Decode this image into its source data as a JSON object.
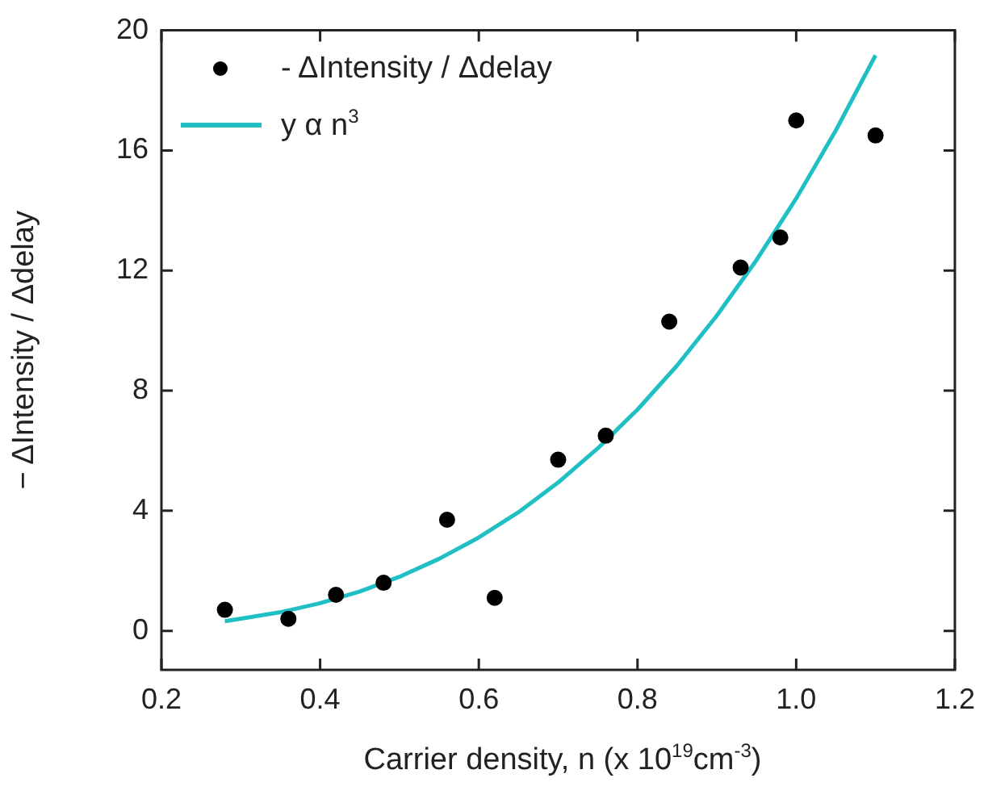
{
  "chart_data": {
    "type": "scatter",
    "xlabel": "Carrier density, n (x 10$^{19}$cm$^{-3}$)",
    "ylabel": "− ΔIntensity / Δdelay",
    "xlim": [
      0.2,
      1.2
    ],
    "xticks": [
      0.2,
      0.4,
      0.6,
      0.8,
      {
        "value": 1,
        "label": "1.0"
      },
      1.2
    ],
    "ylim": [
      -1.3,
      20
    ],
    "yticks": [
      0,
      4,
      8,
      12,
      16,
      20
    ],
    "grid": false,
    "legend": "top left",
    "series": [
      {
        "name": "- ΔIntensity / Δdelay",
        "marker": "circle",
        "color": "#000000",
        "x": [
          0.28,
          0.36,
          0.42,
          0.48,
          0.56,
          0.62,
          0.7,
          0.76,
          0.84,
          0.93,
          0.98,
          1.0,
          1.1
        ],
        "values": [
          0.7,
          0.4,
          1.2,
          1.6,
          3.7,
          1.1,
          5.7,
          6.5,
          10.3,
          12.1,
          13.1,
          17.0,
          16.5
        ]
      },
      {
        "name": "y α n$^{3}$",
        "type": "line",
        "color": "#1fbfc4",
        "line_style": "solid",
        "x": [
          0.28,
          0.35,
          0.4,
          0.45,
          0.5,
          0.55,
          0.6,
          0.65,
          0.7,
          0.75,
          0.8,
          0.85,
          0.9,
          0.95,
          1.0,
          1.05,
          1.1
        ],
        "values": [
          0.32,
          0.62,
          0.92,
          1.31,
          1.8,
          2.4,
          3.11,
          3.95,
          4.94,
          6.08,
          7.37,
          8.84,
          10.5,
          12.35,
          14.4,
          16.67,
          19.17
        ]
      }
    ]
  }
}
